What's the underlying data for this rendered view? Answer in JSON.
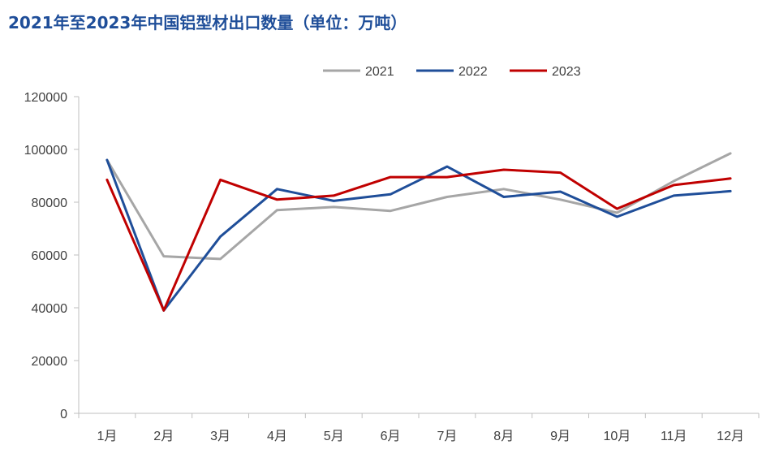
{
  "chart_data": {
    "type": "line",
    "title": "2021年至2023年中国铝型材出口数量（单位：万吨）",
    "categories": [
      "1月",
      "2月",
      "3月",
      "4月",
      "5月",
      "6月",
      "7月",
      "8月",
      "9月",
      "10月",
      "11月",
      "12月"
    ],
    "series": [
      {
        "name": "2021",
        "color": "#a6a6a6",
        "values": [
          96000,
          59500,
          58500,
          77000,
          78200,
          76700,
          82000,
          85000,
          81000,
          76000,
          88000,
          98500
        ]
      },
      {
        "name": "2022",
        "color": "#1f4e99",
        "values": [
          96000,
          39000,
          67000,
          85000,
          80500,
          83000,
          93500,
          82000,
          84000,
          74500,
          82500,
          84200
        ]
      },
      {
        "name": "2023",
        "color": "#c00000",
        "values": [
          88500,
          39000,
          88500,
          81000,
          82500,
          89500,
          89500,
          92300,
          91200,
          77500,
          86500,
          89000
        ]
      }
    ],
    "ylim": [
      0,
      120000
    ],
    "yticks": [
      "0",
      "20000",
      "40000",
      "60000",
      "80000",
      "100000",
      "120000"
    ],
    "grid": false,
    "legend": "top-center"
  }
}
